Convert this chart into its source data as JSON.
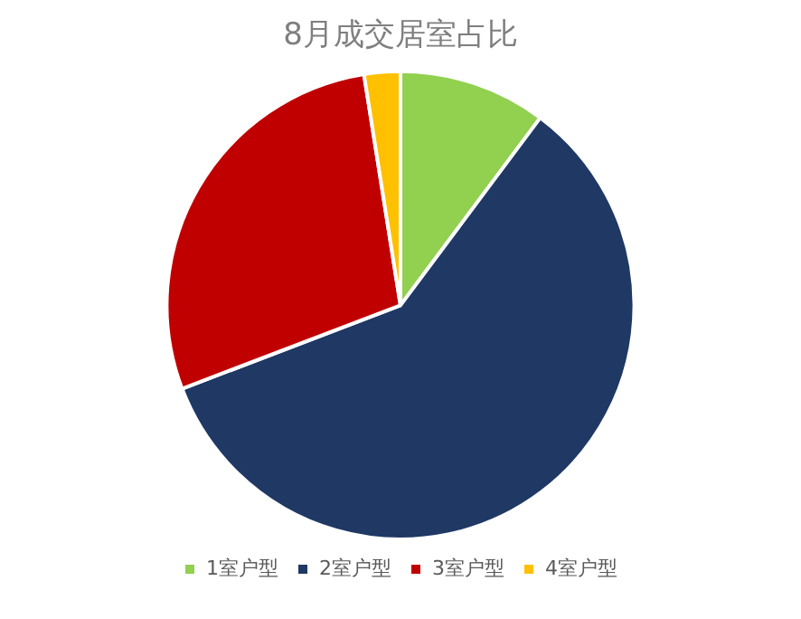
{
  "chart_data": {
    "type": "pie",
    "title": "8月成交居室占比",
    "categories": [
      "1室户型",
      "2室户型",
      "3室户型",
      "4室户型"
    ],
    "values": [
      10.2,
      59.0,
      28.3,
      2.5
    ],
    "colors": [
      "#92d050",
      "#1f3864",
      "#c00000",
      "#ffc000"
    ],
    "legend": "bottom"
  }
}
